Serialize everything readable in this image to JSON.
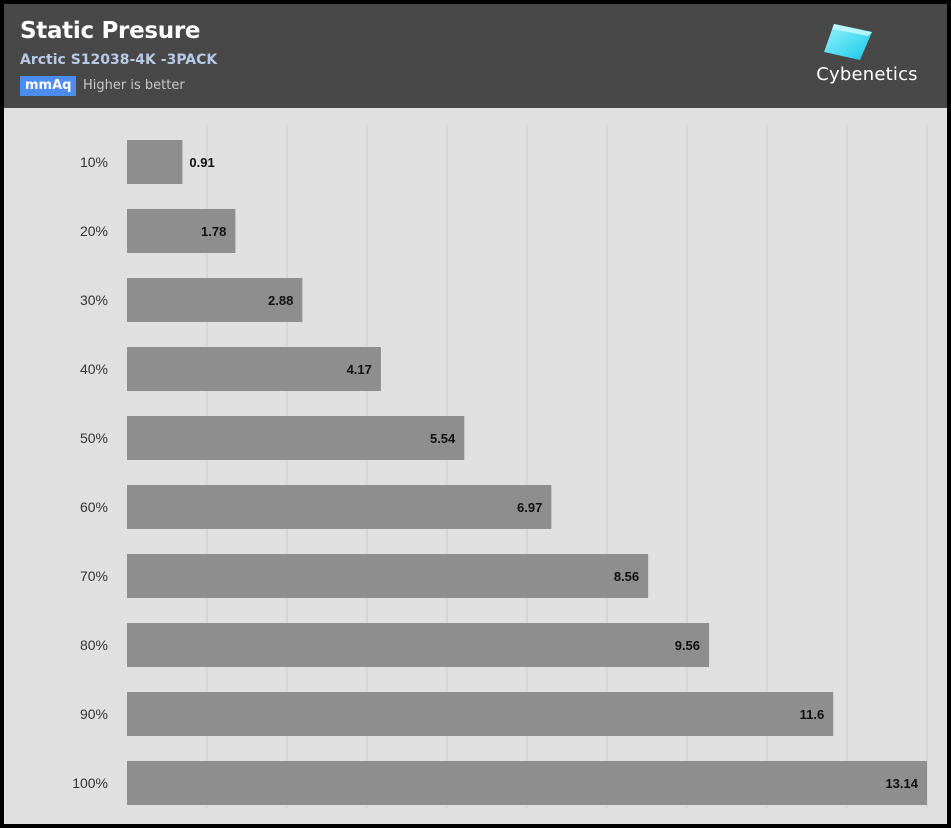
{
  "header": {
    "title": "Static Presure",
    "subtitle": "Arctic S12038-4K -3PACK",
    "unit": "mmAq",
    "note": "Higher is better",
    "logo_text": "Cybenetics"
  },
  "colors": {
    "header_bg": "#484848",
    "plot_bg": "#e0e0e0",
    "bar": "#8e8e8e",
    "unit_badge": "#4e8df0",
    "logo_accent": "#2ee6f5"
  },
  "chart_data": {
    "type": "bar",
    "orientation": "horizontal",
    "categories": [
      "10%",
      "20%",
      "30%",
      "40%",
      "50%",
      "60%",
      "70%",
      "80%",
      "90%",
      "100%"
    ],
    "values": [
      0.91,
      1.78,
      2.88,
      4.17,
      5.54,
      6.97,
      8.56,
      9.56,
      11.6,
      13.14
    ],
    "value_labels": [
      "0.91",
      "1.78",
      "2.88",
      "4.17",
      "5.54",
      "6.97",
      "8.56",
      "9.56",
      "11.6",
      "13.14"
    ],
    "title": "Static Presure",
    "subtitle": "Arctic S12038-4K -3PACK",
    "unit": "mmAq",
    "xlim": [
      0,
      13.14
    ],
    "grid": true,
    "legend": "none"
  }
}
